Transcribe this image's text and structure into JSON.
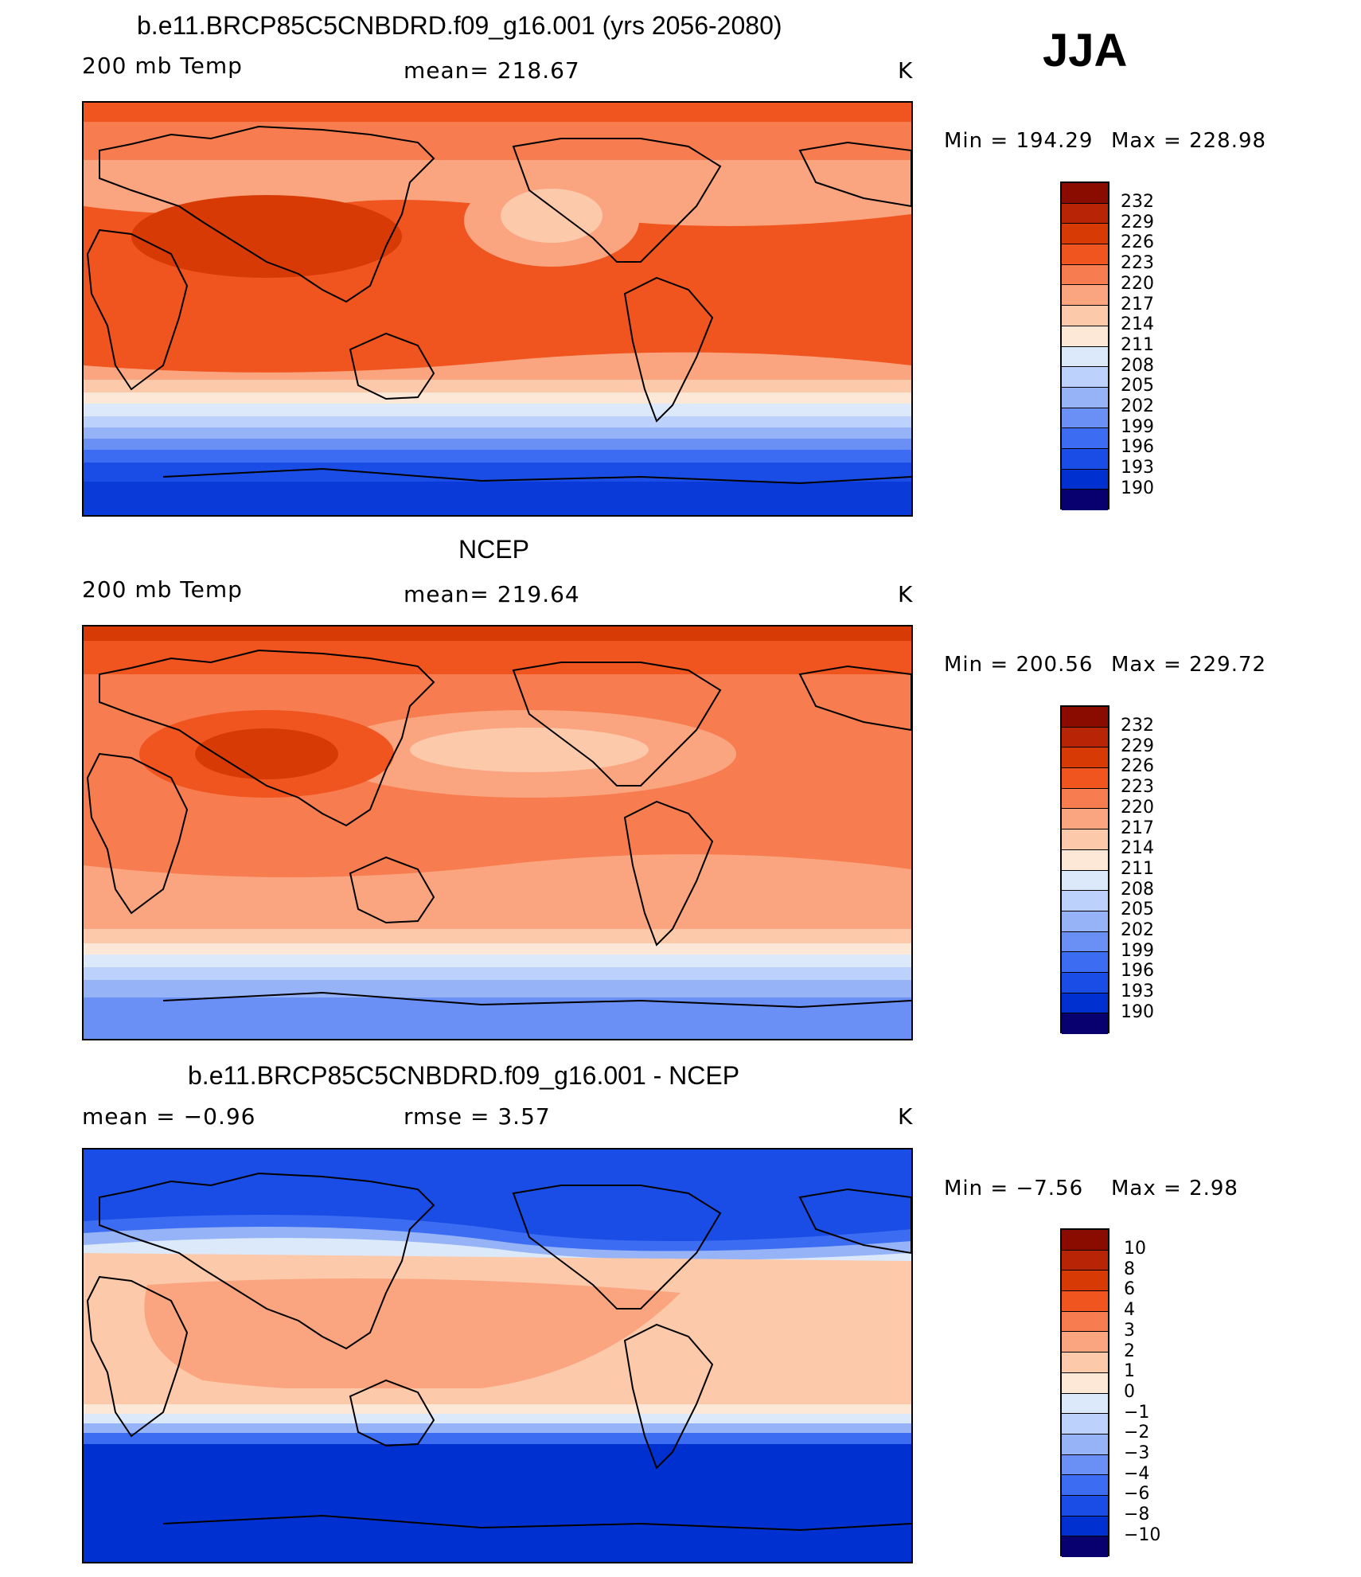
{
  "season": "JJA",
  "colors": {
    "warm_palette": [
      "#08006e",
      "#001ea0",
      "#0030d0",
      "#1a4de6",
      "#3c6cf2",
      "#6a8ff5",
      "#96b3f8",
      "#bcd1fb",
      "#dce9fb",
      "#fde8d8",
      "#fcc9aa",
      "#faa57f",
      "#f77d50",
      "#f0541f",
      "#d83a06",
      "#b82406",
      "#8a0b00"
    ],
    "coastline": "#000000"
  },
  "panels": [
    {
      "title": "b.e11.BRCP85C5CNBDRD.f09_g16.001 (yrs 2056-2080)",
      "left_label": "200 mb Temp",
      "center_label": "mean= 218.67",
      "units": "K",
      "min_label": "Min = 194.29",
      "max_label": "Max = 228.98",
      "colorbar_labels": [
        "232",
        "229",
        "226",
        "223",
        "220",
        "217",
        "214",
        "211",
        "208",
        "205",
        "202",
        "199",
        "196",
        "193",
        "190"
      ]
    },
    {
      "title": "NCEP",
      "left_label": "200 mb Temp",
      "center_label": "mean= 219.64",
      "units": "K",
      "min_label": "Min = 200.56",
      "max_label": "Max = 229.72",
      "colorbar_labels": [
        "232",
        "229",
        "226",
        "223",
        "220",
        "217",
        "214",
        "211",
        "208",
        "205",
        "202",
        "199",
        "196",
        "193",
        "190"
      ]
    },
    {
      "title": "b.e11.BRCP85C5CNBDRD.f09_g16.001 - NCEP",
      "left_label": "mean =   −0.96",
      "center_label": "rmse =    3.57",
      "units": "K",
      "min_label": "Min =   −7.56",
      "max_label": "Max =    2.98",
      "colorbar_labels": [
        "10",
        "8",
        "6",
        "4",
        "3",
        "2",
        "1",
        "0",
        "−1",
        "−2",
        "−3",
        "−4",
        "−6",
        "−8",
        "−10"
      ]
    }
  ]
}
